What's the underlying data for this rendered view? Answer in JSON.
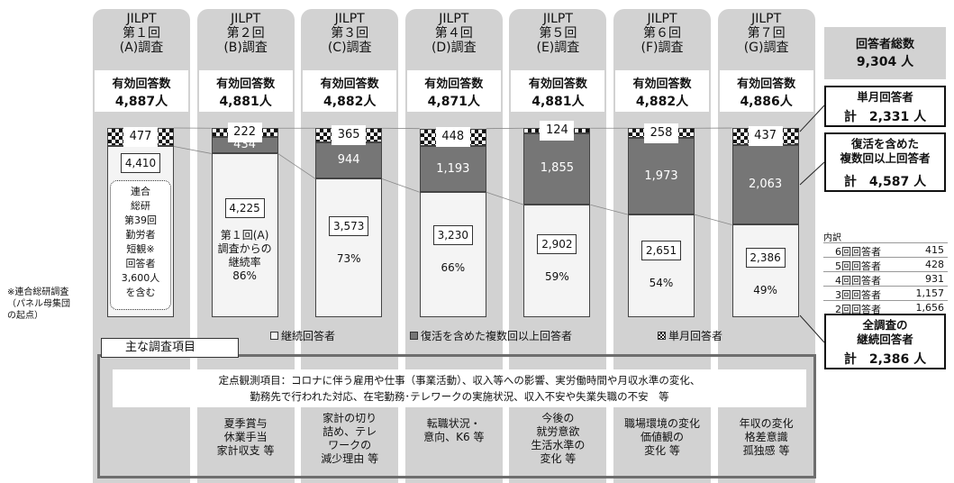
{
  "columns": [
    {
      "header": "JILPT\n第１回\n(A)調査",
      "count_label": "有効回答数",
      "count": "4,887人",
      "note": "連合\n総研\n第39回\n勤労者\n短観※\n回答者\n3,600人\nを含む"
    },
    {
      "header": "JILPT\n第２回\n(B)調査",
      "count_label": "有効回答数",
      "count": "4,881人",
      "rate_caption": "第１回(A)\n調査からの\n継続率",
      "rate": "86%",
      "topics": "夏季賞与\n休業手当\n家計収支 等"
    },
    {
      "header": "JILPT\n第３回\n(C)調査",
      "count_label": "有効回答数",
      "count": "4,882人",
      "rate": "73%",
      "topics": "家計の切り\n詰め、テレ\nワークの\n減少理由 等"
    },
    {
      "header": "JILPT\n第４回\n(D)調査",
      "count_label": "有効回答数",
      "count": "4,871人",
      "rate": "66%",
      "topics": "転職状況・\n意向、K6 等"
    },
    {
      "header": "JILPT\n第５回\n(E)調査",
      "count_label": "有効回答数",
      "count": "4,881人",
      "rate": "59%",
      "topics": "今後の\n就労意欲\n生活水準の\n変化 等"
    },
    {
      "header": "JILPT\n第６回\n(F)調査",
      "count_label": "有効回答数",
      "count": "4,882人",
      "rate": "54%",
      "topics": "職場環境の変化\n価値観の\n変化 等"
    },
    {
      "header": "JILPT\n第７回\n(G)調査",
      "count_label": "有効回答数",
      "count": "4,886人",
      "rate": "49%",
      "topics": "年収の変化\n格差意識\n孤独感 等"
    }
  ],
  "chart_data": {
    "type": "bar",
    "stacked": true,
    "series": [
      {
        "name": "継続回答者",
        "color": "#f4f4f4",
        "values": [
          4410,
          4225,
          3573,
          3230,
          2902,
          2651,
          2386
        ],
        "value_labels": [
          "4,410",
          "4,225",
          "3,573",
          "3,230",
          "2,902",
          "2,651",
          "2,386"
        ]
      },
      {
        "name": "復活を含めた複数回以上回答者",
        "color": "#767676",
        "values": [
          null,
          434,
          944,
          1193,
          1855,
          1973,
          2063
        ],
        "value_labels": [
          null,
          "434",
          "944",
          "1,193",
          "1,855",
          "1,973",
          "2,063"
        ]
      },
      {
        "name": "単月回答者",
        "color": "checker",
        "values": [
          477,
          222,
          365,
          448,
          124,
          258,
          437
        ]
      }
    ]
  },
  "left_note": "※連合総研調査\n（パネル母集団\nの起点）",
  "summary": {
    "total_title": "回答者総数",
    "total": "9,304 人",
    "single_title": "単月回答者",
    "single": "計　2,331 人",
    "multi_title": "復活を含めた\n複数回以上回答者",
    "multi": "計　4,587 人",
    "continuous_title": "全調査の\n継続回答者",
    "continuous": "計　2,386 人"
  },
  "breakdown": {
    "title": "内訳",
    "rows": [
      [
        "6回回答者",
        "415"
      ],
      [
        "5回回答者",
        "428"
      ],
      [
        "4回回答者",
        "931"
      ],
      [
        "3回回答者",
        "1,157"
      ],
      [
        "2回回答者",
        "1,656"
      ]
    ]
  },
  "topics_tab": "主な調査項目",
  "fixed_items": "定点観測項目：コロナに伴う雇用や仕事（事業活動）、収入等への影響、実労働時間や月収水準の変化、\n勤務先で行われた対応、在宅勤務･テレワークの実施状況、収入不安や失業失職の不安　等"
}
